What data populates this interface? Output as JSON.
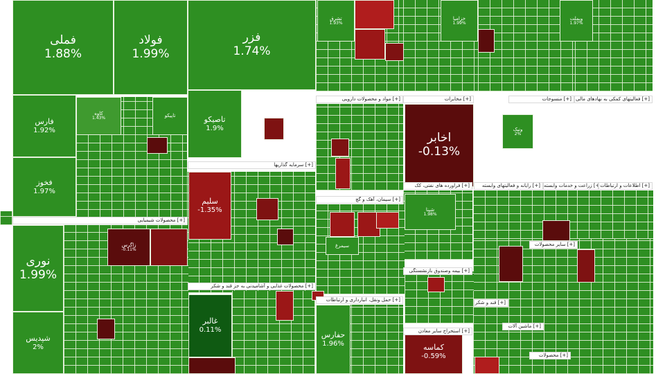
{
  "chart_data": {
    "type": "treemap",
    "sectors": [
      {
        "label": "محصولات شیمیایی [+]"
      },
      {
        "label": "سرمایه گذاریها [+]"
      },
      {
        "label": "محصولات غذایی و آشامیدنی به جز قند و شکر [+]"
      },
      {
        "label": "مواد و محصولات دارویی [+]"
      },
      {
        "label": "سیمان، آهک و گچ [+]"
      },
      {
        "label": "حمل ونقل، انبارداری و ارتباطات [+]"
      },
      {
        "label": "مخابرات [+]"
      },
      {
        "label": "بیمه وصندوق بازنشستگی [+]"
      },
      {
        "label": "استخراج سایر معادن [+]"
      },
      {
        "label": "قند و شکر [+]"
      },
      {
        "label": "فراورده های نفتی، کک [+]"
      },
      {
        "label": "رایانه و فعالیتهای وابسته [+]"
      },
      {
        "label": "زراعت و خدمات وابسته [+]"
      },
      {
        "label": "اطلاعات و ارتباطات [+]"
      },
      {
        "label": "منسوجات [+]"
      },
      {
        "label": "فعالیتهای کمکی به نهادهای مالی [+]"
      },
      {
        "label": "محصولات [+]"
      },
      {
        "label": "سایر محصولات [+]"
      },
      {
        "label": "ماشین آلات [+]"
      }
    ],
    "tiles": [
      {
        "name": "فملی",
        "value": 1.88
      },
      {
        "name": "فولاد",
        "value": 1.99
      },
      {
        "name": "فزر",
        "value": 1.74
      },
      {
        "name": "فارس",
        "value": 1.92
      },
      {
        "name": "فخوز",
        "value": 1.97
      },
      {
        "name": "تاصیکو",
        "value": 1.9
      },
      {
        "name": "نوری",
        "value": 1.99
      },
      {
        "name": "شپدیس",
        "value": 2
      },
      {
        "name": "سلیم",
        "value": -1.35
      },
      {
        "name": "غالبر",
        "value": 0.11
      },
      {
        "name": "اخابر",
        "value": -0.13
      },
      {
        "name": "حفارس",
        "value": 1.96
      },
      {
        "name": "کماسه",
        "value": -0.59
      },
      {
        "name": "وبملت",
        "value": 1.97
      },
      {
        "name": "کاوه",
        "value": 1.43
      },
      {
        "name": "تشرق",
        "value": 1.93
      },
      {
        "name": "خزامیا",
        "value": 1.99
      },
      {
        "name": "شپنا",
        "value": 1.98
      },
      {
        "name": "زاگرس",
        "value": -0.11
      },
      {
        "name": "ونیک",
        "value": 2
      },
      {
        "name": "تاپیکو"
      },
      {
        "name": "سیمرغ"
      }
    ],
    "legend": "none"
  }
}
